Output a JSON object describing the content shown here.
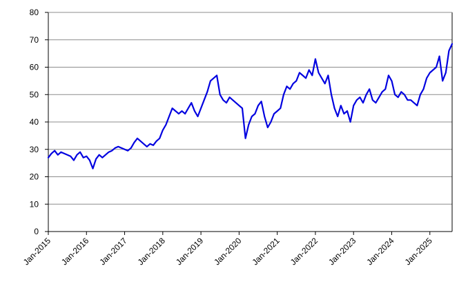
{
  "chart_data": {
    "type": "line",
    "title": "",
    "xlabel": "",
    "ylabel": "",
    "ylim": [
      0,
      80
    ],
    "xlim": [
      "2015-01",
      "2025-08"
    ],
    "y_ticks": [
      0,
      10,
      20,
      30,
      40,
      50,
      60,
      70,
      80
    ],
    "x_ticks": [
      {
        "date": "2015-01",
        "label": "Jan-2015"
      },
      {
        "date": "2016-01",
        "label": "Jan-2016"
      },
      {
        "date": "2017-01",
        "label": "Jan-2017"
      },
      {
        "date": "2018-01",
        "label": "Jan-2018"
      },
      {
        "date": "2019-01",
        "label": "Jan-2019"
      },
      {
        "date": "2020-01",
        "label": "Jan-2020"
      },
      {
        "date": "2021-01",
        "label": "Jan-2021"
      },
      {
        "date": "2022-01",
        "label": "Jan-2022"
      },
      {
        "date": "2023-01",
        "label": "Jan-2023"
      },
      {
        "date": "2024-01",
        "label": "Jan-2024"
      },
      {
        "date": "2025-01",
        "label": "Jan-2025"
      }
    ],
    "grid": "horizontal",
    "legend": "none",
    "series_color": "#0000e0",
    "series": [
      {
        "name": "",
        "x": [
          "2015-01",
          "2015-02",
          "2015-03",
          "2015-04",
          "2015-05",
          "2015-06",
          "2015-07",
          "2015-08",
          "2015-09",
          "2015-10",
          "2015-11",
          "2015-12",
          "2016-01",
          "2016-02",
          "2016-03",
          "2016-04",
          "2016-05",
          "2016-06",
          "2016-07",
          "2016-08",
          "2016-09",
          "2016-10",
          "2016-11",
          "2016-12",
          "2017-01",
          "2017-02",
          "2017-03",
          "2017-04",
          "2017-05",
          "2017-06",
          "2017-07",
          "2017-08",
          "2017-09",
          "2017-10",
          "2017-11",
          "2017-12",
          "2018-01",
          "2018-02",
          "2018-03",
          "2018-04",
          "2018-05",
          "2018-06",
          "2018-07",
          "2018-08",
          "2018-09",
          "2018-10",
          "2018-11",
          "2018-12",
          "2019-01",
          "2019-02",
          "2019-03",
          "2019-04",
          "2019-05",
          "2019-06",
          "2019-07",
          "2019-08",
          "2019-09",
          "2019-10",
          "2019-11",
          "2019-12",
          "2020-01",
          "2020-02",
          "2020-03",
          "2020-04",
          "2020-05",
          "2020-06",
          "2020-07",
          "2020-08",
          "2020-09",
          "2020-10",
          "2020-11",
          "2020-12",
          "2021-01",
          "2021-02",
          "2021-03",
          "2021-04",
          "2021-05",
          "2021-06",
          "2021-07",
          "2021-08",
          "2021-09",
          "2021-10",
          "2021-11",
          "2021-12",
          "2022-01",
          "2022-02",
          "2022-03",
          "2022-04",
          "2022-05",
          "2022-06",
          "2022-07",
          "2022-08",
          "2022-09",
          "2022-10",
          "2022-11",
          "2022-12",
          "2023-01",
          "2023-02",
          "2023-03",
          "2023-04",
          "2023-05",
          "2023-06",
          "2023-07",
          "2023-08",
          "2023-09",
          "2023-10",
          "2023-11",
          "2023-12",
          "2024-01",
          "2024-02",
          "2024-03",
          "2024-04",
          "2024-05",
          "2024-06",
          "2024-07",
          "2024-08",
          "2024-09",
          "2024-10",
          "2024-11",
          "2024-12",
          "2025-01",
          "2025-02",
          "2025-03",
          "2025-04",
          "2025-05",
          "2025-06",
          "2025-07",
          "2025-08"
        ],
        "values": [
          27,
          28.5,
          29.5,
          28,
          29,
          28.5,
          28,
          27.5,
          26,
          28,
          29,
          27,
          27.5,
          26,
          23,
          26.5,
          28,
          27,
          28,
          29,
          29.5,
          30.5,
          31,
          30.5,
          30,
          29.5,
          30.5,
          32.5,
          34,
          33,
          32,
          31,
          32,
          31.5,
          33,
          34,
          37,
          39,
          42,
          45,
          44,
          43,
          44,
          43,
          45,
          47,
          44,
          42,
          45,
          48,
          51,
          55,
          56,
          57,
          50,
          48,
          47,
          49,
          48,
          47,
          46,
          45,
          34,
          39,
          42,
          43,
          46,
          47.5,
          42,
          38,
          40,
          43,
          44,
          45,
          50,
          53,
          52,
          54,
          55,
          58,
          57,
          56,
          59,
          57,
          63,
          58,
          56,
          54,
          57,
          50,
          45,
          42,
          46,
          43,
          44,
          40,
          46,
          48,
          49,
          47,
          50,
          52,
          48,
          47,
          49,
          51,
          52,
          57,
          55,
          50,
          49,
          51,
          50,
          48,
          48,
          47,
          46,
          50,
          52,
          56,
          58,
          59,
          60,
          64,
          55,
          58,
          66,
          68.5
        ]
      }
    ]
  }
}
